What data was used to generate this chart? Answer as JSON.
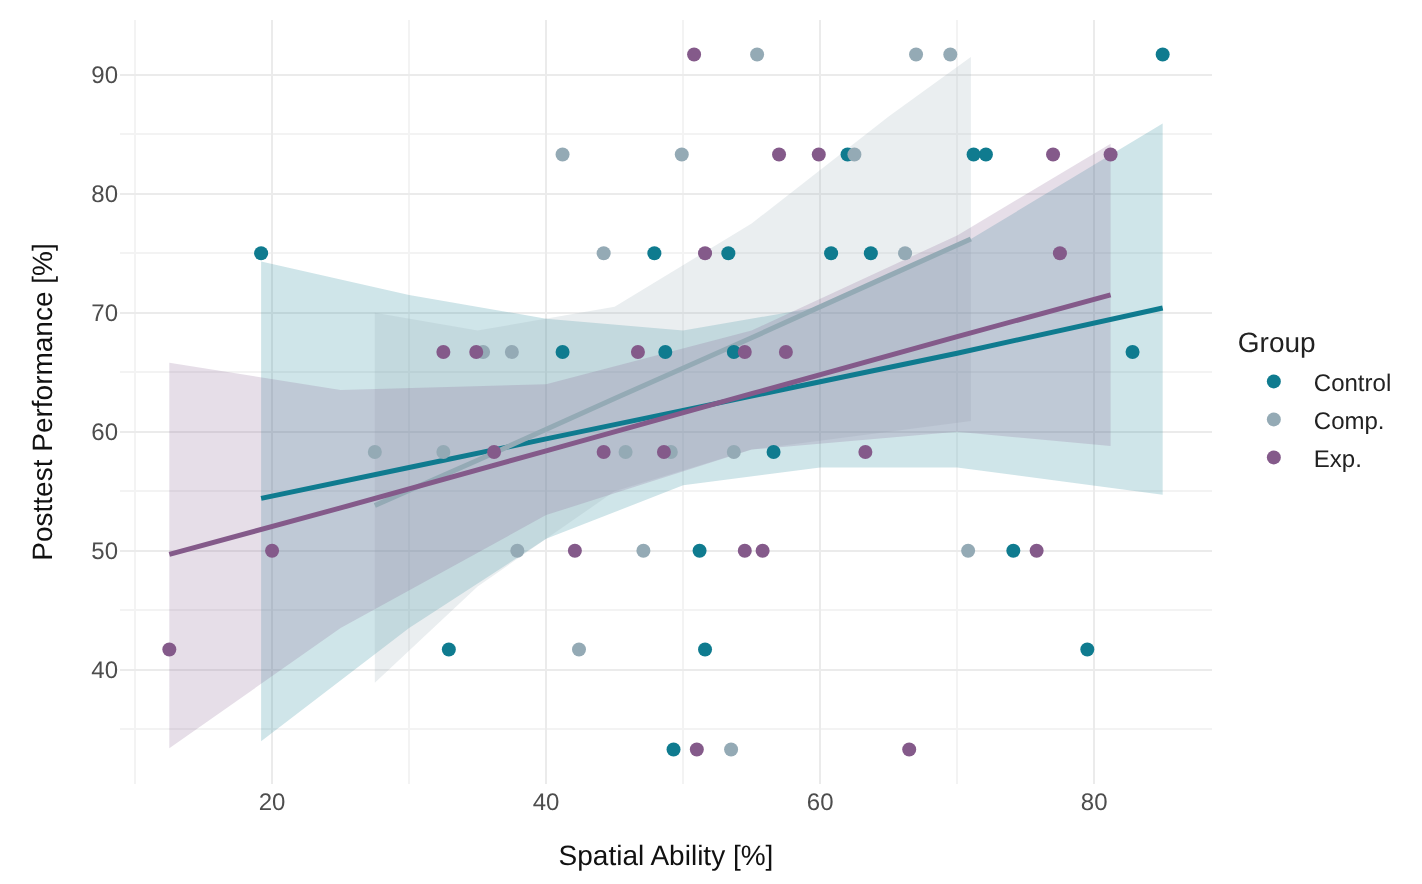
{
  "chart_data": {
    "type": "scatter",
    "xlabel": "Spatial Ability [%]",
    "ylabel": "Posttest Performance [%]",
    "legend_title": "Group",
    "legend": "right",
    "grid": true,
    "marker": "circle",
    "xlim": [
      8.9,
      88.6
    ],
    "ylim": [
      30.4,
      94.6
    ],
    "xticks": [
      20,
      40,
      60,
      80
    ],
    "yticks": [
      40,
      50,
      60,
      70,
      80,
      90
    ],
    "series": [
      {
        "name": "Control",
        "color": "#0f7b8f",
        "x": [
          19.2,
          47.9,
          41.2,
          48.7,
          85.0,
          62.0,
          71.2,
          72.1,
          53.3,
          60.8,
          63.7,
          53.7,
          82.8,
          32.9,
          56.6,
          51.2,
          74.1,
          51.6,
          79.5,
          49.3
        ],
        "values": [
          75,
          75,
          66.7,
          66.7,
          91.7,
          83.3,
          83.3,
          83.3,
          75,
          75,
          75,
          66.7,
          66.7,
          41.7,
          58.3,
          50,
          50,
          41.7,
          41.7,
          33.3
        ]
      },
      {
        "name": "Comp.",
        "color": "#94aab5",
        "x": [
          41.2,
          44.2,
          35.4,
          37.5,
          55.4,
          67.0,
          69.5,
          49.9,
          62.5,
          66.2,
          27.5,
          32.5,
          45.8,
          49.1,
          53.7,
          37.9,
          47.1,
          70.8,
          42.4,
          53.5
        ],
        "values": [
          83.3,
          75,
          66.7,
          66.7,
          91.7,
          91.7,
          91.7,
          83.3,
          83.3,
          75,
          58.3,
          58.3,
          58.3,
          58.3,
          58.3,
          50,
          50,
          50,
          41.7,
          33.3
        ]
      },
      {
        "name": "Exp.",
        "color": "#845a8a",
        "x": [
          32.5,
          34.9,
          46.7,
          50.8,
          57.0,
          59.9,
          77.0,
          81.2,
          51.6,
          77.5,
          54.5,
          57.5,
          36.2,
          44.2,
          48.6,
          63.3,
          20.0,
          42.1,
          54.5,
          55.8,
          75.8,
          12.5,
          51.0,
          66.5
        ],
        "values": [
          66.7,
          66.7,
          66.7,
          91.7,
          83.3,
          83.3,
          83.3,
          83.3,
          75,
          75,
          66.7,
          66.7,
          58.3,
          58.3,
          58.3,
          58.3,
          50,
          50,
          50,
          50,
          50,
          41.7,
          33.3,
          33.3
        ]
      },
      {
        "type": "line",
        "marker": "none",
        "color": "#0f7b8f",
        "x": [
          19.2,
          30,
          40,
          50,
          60,
          70,
          85.0
        ],
        "values": [
          54.4,
          57.0,
          59.4,
          61.8,
          64.2,
          66.6,
          70.4
        ],
        "lower": [
          34.0,
          43.5,
          51.0,
          55.5,
          57.0,
          57.0,
          54.7
        ],
        "upper": [
          74.3,
          71.5,
          69.5,
          68.5,
          70.5,
          75.5,
          85.9
        ]
      },
      {
        "type": "line",
        "marker": "none",
        "color": "#94aab5",
        "x": [
          27.5,
          35,
          45,
          55,
          65,
          71.0
        ],
        "values": [
          53.8,
          57.6,
          62.8,
          67.9,
          73.1,
          76.2
        ],
        "lower": [
          38.9,
          47.0,
          55.0,
          58.5,
          60.0,
          60.9
        ],
        "upper": [
          70.0,
          68.5,
          70.5,
          77.5,
          86.5,
          91.5
        ]
      },
      {
        "type": "line",
        "marker": "none",
        "color": "#845a8a",
        "x": [
          12.5,
          25,
          40,
          55,
          70,
          81.2
        ],
        "values": [
          49.7,
          53.6,
          58.4,
          63.2,
          68.0,
          71.5
        ],
        "lower": [
          33.4,
          43.5,
          53.0,
          58.5,
          60.0,
          58.8
        ],
        "upper": [
          65.8,
          63.5,
          64.0,
          68.5,
          76.5,
          84.2
        ]
      }
    ]
  }
}
